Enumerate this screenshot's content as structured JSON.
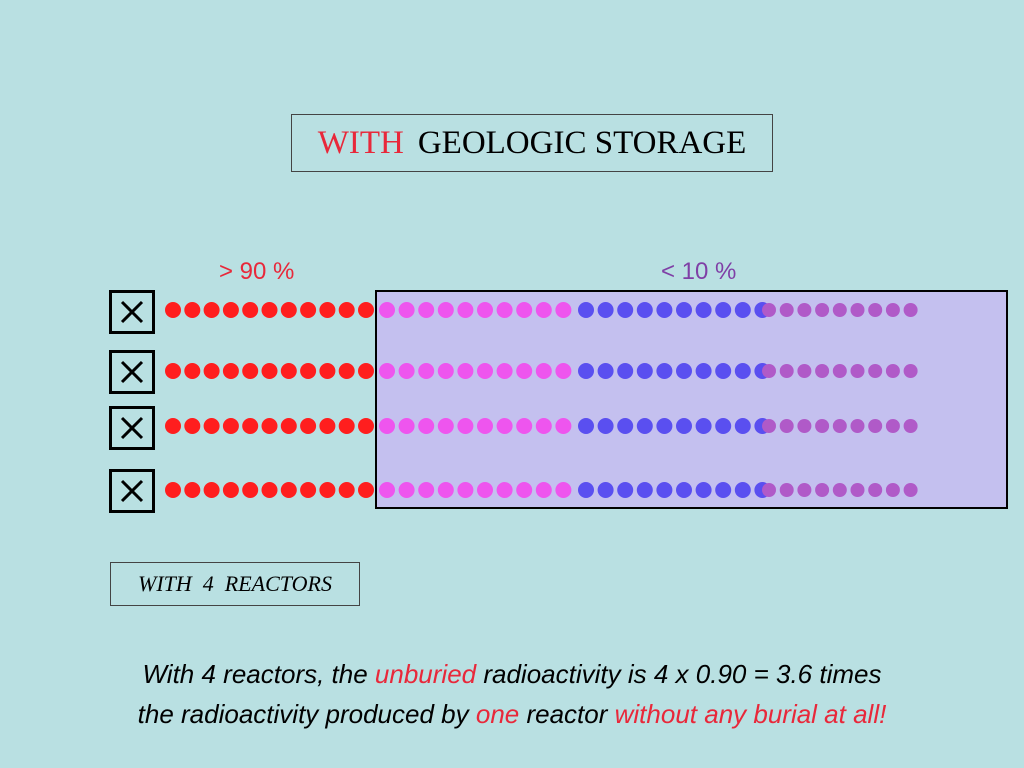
{
  "title": {
    "accent": "WITH",
    "rest": "GEOLOGIC STORAGE"
  },
  "percent_left": "> 90 %",
  "percent_right": "< 10 %",
  "reactor_symbol": "X",
  "reactor_count": 4,
  "reactors_label": "WITH  4  REACTORS",
  "dot_groups": [
    {
      "color": "#ff1e1e",
      "count": 11,
      "meaning": "unburied"
    },
    {
      "color": "#ee55ee",
      "count": 10,
      "meaning": "buried"
    },
    {
      "color": "#5a4ff0",
      "count": 10,
      "meaning": "buried"
    },
    {
      "color": "#b05ac8",
      "count": 9,
      "meaning": "buried"
    }
  ],
  "caption": {
    "line1": {
      "a": "With 4 reactors, the ",
      "b": "unburied",
      "c": " radioactivity is 4 x 0.90 = 3.6 times"
    },
    "line2": {
      "a": "the radioactivity produced by ",
      "b": "one",
      "c": " reactor ",
      "d": "without any burial at all!"
    }
  },
  "colors": {
    "background": "#b9e0e2",
    "storage": "#c4c0ef",
    "accent": "#e8283a",
    "purple_text": "#7f3fa6"
  }
}
